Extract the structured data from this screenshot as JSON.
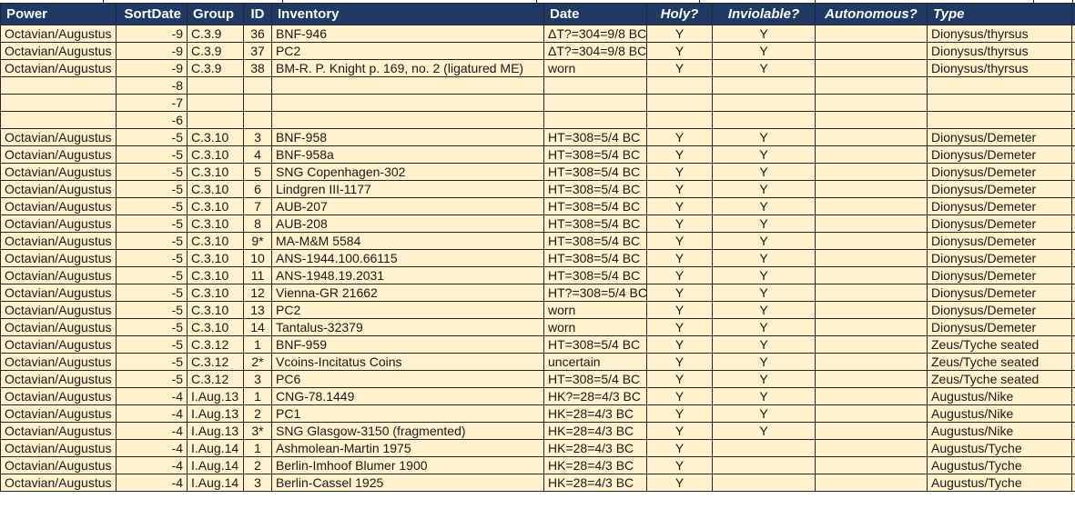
{
  "colors": {
    "header_bg": "#1F3864",
    "header_text": "#FFFFFF",
    "cell_bg": "#FFF2CC",
    "cell_text": "#1A1A1A",
    "grid": "#262626"
  },
  "table": {
    "columns": [
      {
        "key": "power",
        "label": "Power",
        "align": "left",
        "header_align": "left",
        "italic": false
      },
      {
        "key": "sortdate",
        "label": "SortDate",
        "align": "right",
        "header_align": "right",
        "italic": false
      },
      {
        "key": "group",
        "label": "Group",
        "align": "left",
        "header_align": "left",
        "italic": false
      },
      {
        "key": "id",
        "label": "ID",
        "align": "center",
        "header_align": "center",
        "italic": false
      },
      {
        "key": "inventory",
        "label": "Inventory",
        "align": "left",
        "header_align": "left",
        "italic": false
      },
      {
        "key": "date",
        "label": "Date",
        "align": "left",
        "header_align": "left",
        "italic": false
      },
      {
        "key": "holy",
        "label": "Holy?",
        "align": "center",
        "header_align": "center",
        "italic": true
      },
      {
        "key": "inviolable",
        "label": "Inviolable?",
        "align": "center",
        "header_align": "center",
        "italic": true
      },
      {
        "key": "autonomous",
        "label": "Autonomous?",
        "align": "center",
        "header_align": "center",
        "italic": true
      },
      {
        "key": "type",
        "label": "Type",
        "align": "left",
        "header_align": "left",
        "italic": true
      }
    ],
    "rows": [
      [
        "Octavian/Augustus",
        "-9",
        "C.3.9",
        "36",
        "BNF-946",
        "ΔT?=304=9/8 BC",
        "Y",
        "Y",
        "",
        "Dionysus/thyrsus"
      ],
      [
        "Octavian/Augustus",
        "-9",
        "C.3.9",
        "37",
        "PC2",
        "ΔT?=304=9/8 BC",
        "Y",
        "Y",
        "",
        "Dionysus/thyrsus"
      ],
      [
        "Octavian/Augustus",
        "-9",
        "C.3.9",
        "38",
        "BM-R. P. Knight p. 169, no. 2 (ligatured ME)",
        "worn",
        "Y",
        "Y",
        "",
        "Dionysus/thyrsus"
      ],
      [
        "",
        "-8",
        "",
        "",
        "",
        "",
        "",
        "",
        "",
        ""
      ],
      [
        "",
        "-7",
        "",
        "",
        "",
        "",
        "",
        "",
        "",
        ""
      ],
      [
        "",
        "-6",
        "",
        "",
        "",
        "",
        "",
        "",
        "",
        ""
      ],
      [
        "Octavian/Augustus",
        "-5",
        "C.3.10",
        "3",
        "BNF-958",
        "HT=308=5/4 BC",
        "Y",
        "Y",
        "",
        "Dionysus/Demeter"
      ],
      [
        "Octavian/Augustus",
        "-5",
        "C.3.10",
        "4",
        "BNF-958a",
        "HT=308=5/4 BC",
        "Y",
        "Y",
        "",
        "Dionysus/Demeter"
      ],
      [
        "Octavian/Augustus",
        "-5",
        "C.3.10",
        "5",
        "SNG Copenhagen-302",
        "HT=308=5/4 BC",
        "Y",
        "Y",
        "",
        "Dionysus/Demeter"
      ],
      [
        "Octavian/Augustus",
        "-5",
        "C.3.10",
        "6",
        "Lindgren III-1177",
        "HT=308=5/4 BC",
        "Y",
        "Y",
        "",
        "Dionysus/Demeter"
      ],
      [
        "Octavian/Augustus",
        "-5",
        "C.3.10",
        "7",
        "AUB-207",
        "HT=308=5/4 BC",
        "Y",
        "Y",
        "",
        "Dionysus/Demeter"
      ],
      [
        "Octavian/Augustus",
        "-5",
        "C.3.10",
        "8",
        "AUB-208",
        "HT=308=5/4 BC",
        "Y",
        "Y",
        "",
        "Dionysus/Demeter"
      ],
      [
        "Octavian/Augustus",
        "-5",
        "C.3.10",
        "9*",
        "MA-M&M 5584",
        "HT=308=5/4 BC",
        "Y",
        "Y",
        "",
        "Dionysus/Demeter"
      ],
      [
        "Octavian/Augustus",
        "-5",
        "C.3.10",
        "10",
        "ANS-1944.100.66115",
        "HT=308=5/4 BC",
        "Y",
        "Y",
        "",
        "Dionysus/Demeter"
      ],
      [
        "Octavian/Augustus",
        "-5",
        "C.3.10",
        "11",
        "ANS-1948.19.2031",
        "HT=308=5/4 BC",
        "Y",
        "Y",
        "",
        "Dionysus/Demeter"
      ],
      [
        "Octavian/Augustus",
        "-5",
        "C.3.10",
        "12",
        "Vienna-GR 21662",
        "HT?=308=5/4 BC",
        "Y",
        "Y",
        "",
        "Dionysus/Demeter"
      ],
      [
        "Octavian/Augustus",
        "-5",
        "C.3.10",
        "13",
        "PC2",
        "worn",
        "Y",
        "Y",
        "",
        "Dionysus/Demeter"
      ],
      [
        "Octavian/Augustus",
        "-5",
        "C.3.10",
        "14",
        "Tantalus-32379",
        "worn",
        "Y",
        "Y",
        "",
        "Dionysus/Demeter"
      ],
      [
        "Octavian/Augustus",
        "-5",
        "C.3.12",
        "1",
        "BNF-959",
        "HT=308=5/4 BC",
        "Y",
        "Y",
        "",
        "Zeus/Tyche seated"
      ],
      [
        "Octavian/Augustus",
        "-5",
        "C.3.12",
        "2*",
        "Vcoins-Incitatus Coins",
        "uncertain",
        "Y",
        "Y",
        "",
        "Zeus/Tyche seated"
      ],
      [
        "Octavian/Augustus",
        "-5",
        "C.3.12",
        "3",
        "PC6",
        "HT=308=5/4 BC",
        "Y",
        "Y",
        "",
        "Zeus/Tyche seated"
      ],
      [
        "Octavian/Augustus",
        "-4",
        "I.Aug.13",
        "1",
        "CNG-78.1449",
        "HK?=28=4/3 BC",
        "Y",
        "Y",
        "",
        "Augustus/Nike"
      ],
      [
        "Octavian/Augustus",
        "-4",
        "I.Aug.13",
        "2",
        "PC1",
        "HK=28=4/3 BC",
        "Y",
        "Y",
        "",
        "Augustus/Nike"
      ],
      [
        "Octavian/Augustus",
        "-4",
        "I.Aug.13",
        "3*",
        "SNG Glasgow-3150 (fragmented)",
        "HK=28=4/3 BC",
        "Y",
        "Y",
        "",
        "Augustus/Nike"
      ],
      [
        "Octavian/Augustus",
        "-4",
        "I.Aug.14",
        "1",
        "Ashmolean-Martin 1975",
        "HK=28=4/3 BC",
        "Y",
        "",
        "",
        "Augustus/Tyche"
      ],
      [
        "Octavian/Augustus",
        "-4",
        "I.Aug.14",
        "2",
        "Berlin-Imhoof Blumer 1900",
        "HK=28=4/3 BC",
        "Y",
        "",
        "",
        "Augustus/Tyche"
      ],
      [
        "Octavian/Augustus",
        "-4",
        "I.Aug.14",
        "3",
        "Berlin-Cassel 1925",
        "HK=28=4/3 BC",
        "Y",
        "",
        "",
        "Augustus/Tyche"
      ]
    ]
  }
}
